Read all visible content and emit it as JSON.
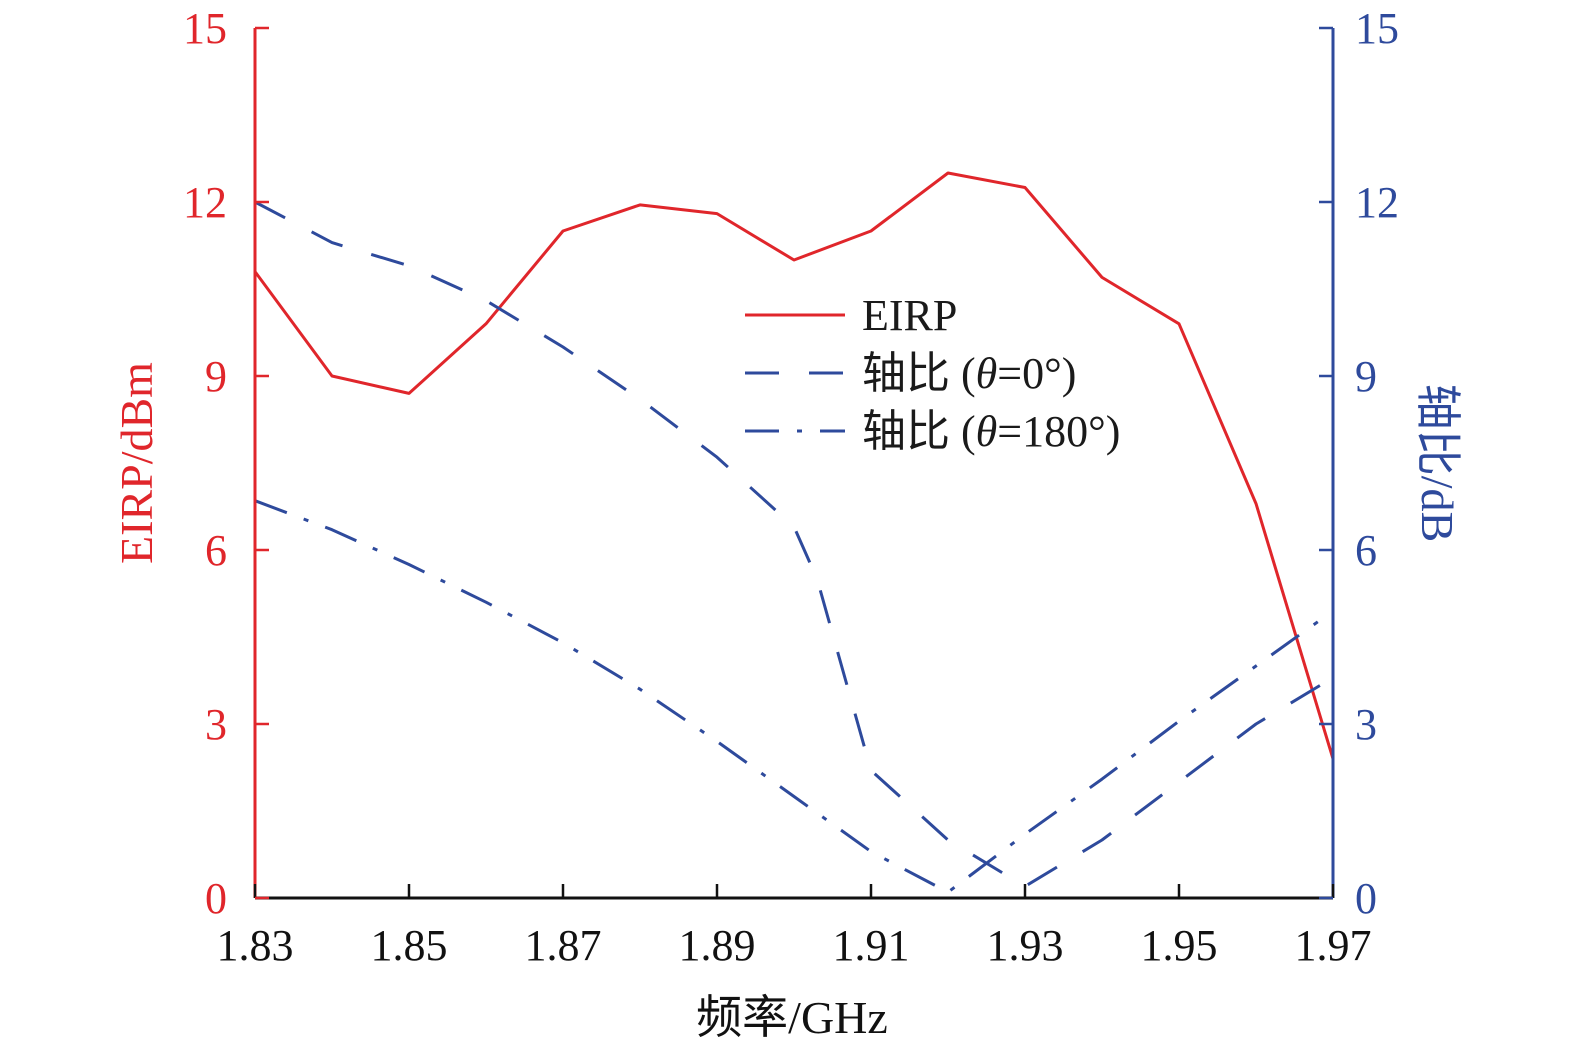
{
  "chart_data": {
    "type": "line",
    "x_label": "频率/GHz",
    "y_left_label": "EIRP/dBm",
    "y_right_label": "轴比/dB",
    "xlim": [
      1.83,
      1.97
    ],
    "ylim_left": [
      0,
      15
    ],
    "ylim_right": [
      0,
      15
    ],
    "x_ticks": [
      "1.83",
      "1.85",
      "1.87",
      "1.89",
      "1.91",
      "1.93",
      "1.95",
      "1.97"
    ],
    "y_ticks_left": [
      "0",
      "3",
      "6",
      "9",
      "12",
      "15"
    ],
    "y_ticks_right": [
      "0",
      "3",
      "6",
      "9",
      "12",
      "15"
    ],
    "legend_position": "center-right",
    "grid": false,
    "colors": {
      "left_axis": "#e0262b",
      "right_axis": "#2e4a9c",
      "frame": "#111111"
    },
    "series": [
      {
        "name": "EIRP",
        "axis": "left",
        "color": "#e0262b",
        "style": "solid",
        "x": [
          1.83,
          1.84,
          1.85,
          1.86,
          1.87,
          1.88,
          1.89,
          1.9,
          1.91,
          1.92,
          1.93,
          1.94,
          1.95,
          1.96,
          1.97
        ],
        "y": [
          10.8,
          9.0,
          8.7,
          9.9,
          11.5,
          11.95,
          11.8,
          11.0,
          11.5,
          12.5,
          12.25,
          10.7,
          9.9,
          6.8,
          2.4
        ]
      },
      {
        "name": "轴比 (θ=0°)",
        "legend_parts": {
          "prefix": "轴比 (",
          "symbol": "θ",
          "suffix": "=0°)"
        },
        "axis": "right",
        "color": "#2e4a9c",
        "style": "dash",
        "x": [
          1.83,
          1.84,
          1.85,
          1.86,
          1.87,
          1.88,
          1.89,
          1.9,
          1.903,
          1.91,
          1.92,
          1.93,
          1.94,
          1.95,
          1.96,
          1.97
        ],
        "y": [
          12.0,
          11.3,
          10.9,
          10.3,
          9.5,
          8.6,
          7.6,
          6.4,
          5.5,
          2.2,
          1.0,
          0.2,
          1.0,
          2.0,
          3.0,
          3.8
        ]
      },
      {
        "name": "轴比 (θ=180°)",
        "legend_parts": {
          "prefix": "轴比 (",
          "symbol": "θ",
          "suffix": "=180°)"
        },
        "axis": "right",
        "color": "#2e4a9c",
        "style": "dashdot",
        "x": [
          1.83,
          1.84,
          1.85,
          1.86,
          1.87,
          1.88,
          1.89,
          1.9,
          1.91,
          1.92,
          1.93,
          1.94,
          1.95,
          1.96,
          1.97
        ],
        "y": [
          6.85,
          6.35,
          5.75,
          5.1,
          4.4,
          3.6,
          2.7,
          1.75,
          0.8,
          0.1,
          1.1,
          2.05,
          3.05,
          4.0,
          4.95
        ]
      }
    ]
  }
}
